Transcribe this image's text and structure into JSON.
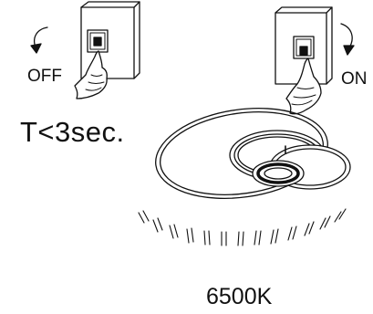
{
  "labels": {
    "off": "OFF",
    "on": "ON",
    "timing": "T<3sec.",
    "color_temperature": "6500K"
  },
  "icons": {
    "left_switch": "wall-switch-icon",
    "left_hand": "pointing-hand-icon",
    "left_arrow": "curved-arrow-down-icon",
    "right_switch": "wall-switch-icon",
    "right_hand": "pointing-hand-icon",
    "right_arrow": "curved-arrow-down-icon",
    "lamp": "ring-ceiling-lamp-icon",
    "light_rays": "light-rays-icon"
  },
  "colors": {
    "ink": "#111111",
    "background": "#ffffff"
  }
}
